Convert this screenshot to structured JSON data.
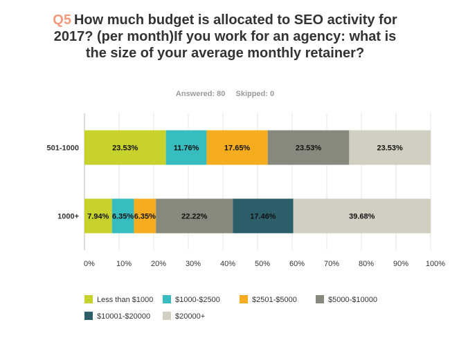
{
  "question": {
    "number": "Q5",
    "text": "How much budget is allocated to SEO activity for 2017? (per month)If you work for an agency: what is the size of your average monthly retainer?"
  },
  "stats": {
    "answered": "Answered: 80",
    "skipped": "Skipped: 0"
  },
  "chart_data": {
    "type": "bar",
    "orientation": "horizontal",
    "stacked": true,
    "categories": [
      "501-1000",
      "1000+"
    ],
    "series": [
      {
        "name": "Less than $1000",
        "color": "#c7d22c",
        "values": [
          23.53,
          7.94
        ]
      },
      {
        "name": "$1000-$2500",
        "color": "#37bcc0",
        "values": [
          11.76,
          6.35
        ]
      },
      {
        "name": "$2501-$5000",
        "color": "#f5ad1f",
        "values": [
          17.65,
          6.35
        ]
      },
      {
        "name": "$5000-$10000",
        "color": "#858a7c",
        "values": [
          23.53,
          22.22
        ]
      },
      {
        "name": "$10001-$20000",
        "color": "#2d5f6a",
        "values": [
          0,
          17.46
        ]
      },
      {
        "name": "$20000+",
        "color": "#d1cfc1",
        "values": [
          23.53,
          39.68
        ]
      }
    ],
    "data_labels": [
      [
        "23.53%",
        "11.76%",
        "17.65%",
        "23.53%",
        "",
        "23.53%"
      ],
      [
        "7.94%",
        "6.35%",
        "6.35%",
        "22.22%",
        "17.46%",
        "39.68%"
      ]
    ],
    "xlim": [
      0,
      100
    ],
    "x_ticks": [
      "0%",
      "10%",
      "20%",
      "30%",
      "40%",
      "50%",
      "60%",
      "70%",
      "80%",
      "90%",
      "100%"
    ],
    "legend_position": "bottom",
    "grid": true
  }
}
